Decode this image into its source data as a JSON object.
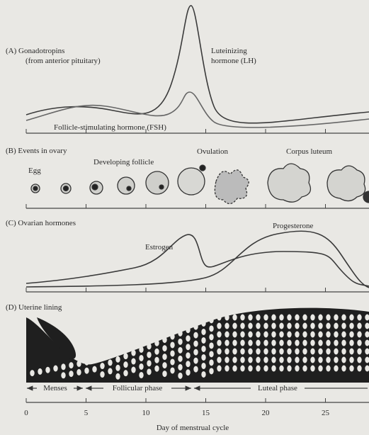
{
  "panels": {
    "a": {
      "label": "(A) Gonadotropins",
      "sublabel": "(from anterior pituitary)",
      "lh": [
        "Luteinizing",
        "hormone (LH)"
      ],
      "fsh": "Follicle-stimulating hormone (FSH)"
    },
    "b": {
      "label": "(B) Events in ovary",
      "egg": "Egg",
      "follicle": "Developing follicle",
      "ovulation": "Ovulation",
      "corpus": "Corpus luteum"
    },
    "c": {
      "label": "(C) Ovarian hormones",
      "estrogen": "Estrogen",
      "progesterone": "Progesterone"
    },
    "d": {
      "label": "(D) Uterine lining"
    }
  },
  "phases": [
    "Menses",
    "Follicular phase",
    "Luteal phase"
  ],
  "x_axis": {
    "ticks": [
      0,
      5,
      10,
      15,
      20,
      25
    ],
    "label": "Day of menstrual cycle"
  }
}
